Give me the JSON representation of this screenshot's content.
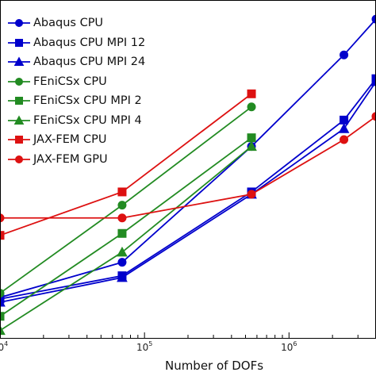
{
  "chart_data": {
    "type": "line",
    "title": "",
    "xlabel": "Number of DOFs",
    "ylabel": "",
    "xscale": "log",
    "yscale": "log",
    "xlim": [
      10000,
      4000000
    ],
    "ylim": [
      0.5,
      2000
    ],
    "grid": false,
    "legend_position": "top-left",
    "x_ticks": [
      {
        "base": "10",
        "exp": "4",
        "value": 10000
      },
      {
        "base": "10",
        "exp": "5",
        "value": 100000
      },
      {
        "base": "10",
        "exp": "6",
        "value": 1000000
      }
    ],
    "series": [
      {
        "name": "Abaqus CPU",
        "color": "#0000cc",
        "marker": "circle",
        "x": [
          10000,
          70000,
          550000,
          2400000,
          4000000
        ],
        "y": [
          1.35,
          3.2,
          55,
          520,
          1250
        ]
      },
      {
        "name": "Abaqus CPU MPI 12",
        "color": "#0000cc",
        "marker": "square",
        "x": [
          10000,
          70000,
          550000,
          2400000,
          4000000
        ],
        "y": [
          1.3,
          2.3,
          18,
          105,
          290
        ]
      },
      {
        "name": "Abaqus CPU MPI 24",
        "color": "#0000cc",
        "marker": "triangle",
        "x": [
          10000,
          70000,
          550000,
          2400000,
          4000000
        ],
        "y": [
          1.2,
          2.2,
          17,
          85,
          270
        ]
      },
      {
        "name": "FEniCSx CPU",
        "color": "#228b22",
        "marker": "circle",
        "x": [
          10000,
          70000,
          550000
        ],
        "y": [
          1.5,
          13,
          145
        ]
      },
      {
        "name": "FEniCSx CPU MPI 2",
        "color": "#228b22",
        "marker": "square",
        "x": [
          10000,
          70000,
          550000
        ],
        "y": [
          0.85,
          6.5,
          68
        ]
      },
      {
        "name": "FEniCSx CPU MPI 4",
        "color": "#228b22",
        "marker": "triangle",
        "x": [
          10000,
          70000,
          550000
        ],
        "y": [
          0.6,
          4.1,
          55
        ]
      },
      {
        "name": "JAX-FEM CPU",
        "color": "#dd1111",
        "marker": "square",
        "x": [
          10000,
          70000,
          550000
        ],
        "y": [
          6.2,
          18,
          200
        ]
      },
      {
        "name": "JAX-FEM GPU",
        "color": "#dd1111",
        "marker": "circle",
        "x": [
          10000,
          70000,
          550000,
          2400000,
          4000000
        ],
        "y": [
          9.5,
          9.5,
          17,
          65,
          115
        ]
      }
    ]
  }
}
